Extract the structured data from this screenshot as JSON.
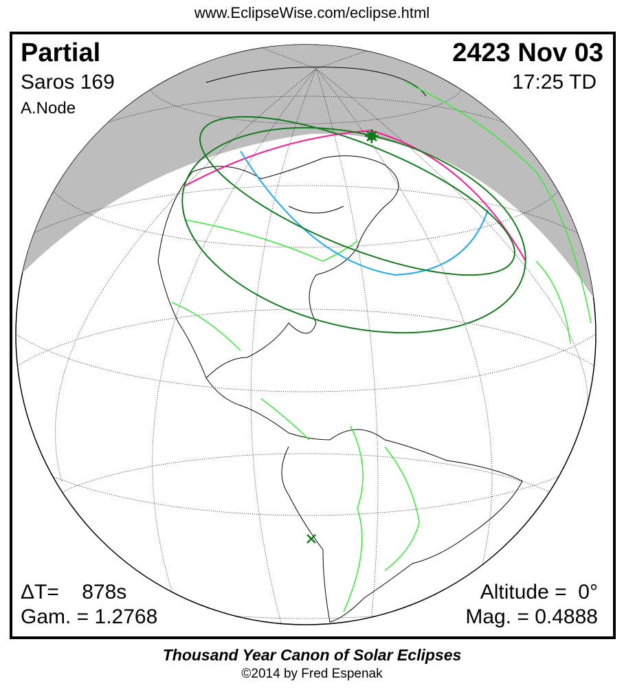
{
  "header": {
    "url": "www.EclipseWise.com/eclipse.html"
  },
  "eclipse": {
    "type": "Partial",
    "date": "2423 Nov 03",
    "saros": "Saros 169",
    "time": "17:25 TD",
    "node": "A.Node",
    "delta_t": "ΔT=    878s",
    "gamma": "Gam. = 1.2768",
    "altitude": "Altitude =  0°",
    "magnitude": "Mag. = 0.4888"
  },
  "colors": {
    "night": "#bdbdbd",
    "max_line": "#ff1493",
    "mid_line": "#1eaaf0",
    "limit_line": "#117a1a",
    "borders": "#33ee33"
  },
  "icons": {
    "greatest_eclipse": "star-icon",
    "sub_solar": "x-mark-icon"
  },
  "footer": {
    "title": "Thousand Year Canon of Solar Eclipses",
    "copyright": "©2014 by Fred Espenak"
  }
}
